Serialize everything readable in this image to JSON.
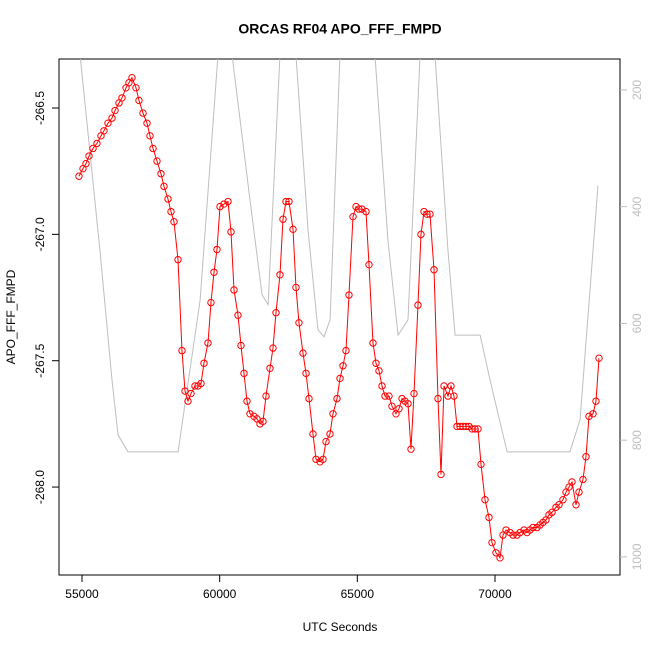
{
  "chart_data": {
    "type": "line",
    "title": "ORCAS RF04 APO_FFF_FMPD",
    "x_label": "UTC Seconds",
    "y_label": "APO_FFF_FMPD",
    "xlim": [
      54165,
      74540
    ],
    "xticks": [
      55000,
      60000,
      65000,
      70000
    ],
    "ylim": [
      -268.348,
      -266.306
    ],
    "yticks": [
      {
        "value": -268,
        "label": "-268.0"
      },
      -267.5,
      {
        "value": -267,
        "label": "-267.0"
      },
      -266.5
    ],
    "y2lim": [
      1031,
      147
    ],
    "y2ticks": [
      200,
      400,
      600,
      800,
      1000
    ],
    "y2_color": "#bebebe",
    "series": [
      {
        "color": "#ff0000",
        "marker": "circle",
        "x": [
          54890,
          55036,
          55145,
          55254,
          55400,
          55545,
          55690,
          55799,
          55944,
          56090,
          56199,
          56344,
          56453,
          56598,
          56707,
          56816,
          56961,
          57070,
          57216,
          57361,
          57470,
          57579,
          57724,
          57869,
          57978,
          58124,
          58233,
          58341,
          58487,
          58632,
          58741,
          58850,
          58959,
          59104,
          59213,
          59322,
          59431,
          59576,
          59685,
          59794,
          59903,
          60012,
          60157,
          60303,
          60412,
          60521,
          60666,
          60775,
          60884,
          60993,
          61102,
          61247,
          61356,
          61465,
          61574,
          61683,
          61828,
          61937,
          62046,
          62191,
          62300,
          62409,
          62518,
          62664,
          62772,
          62881,
          63027,
          63136,
          63245,
          63390,
          63499,
          63644,
          63753,
          63862,
          64007,
          64116,
          64262,
          64371,
          64480,
          64588,
          64697,
          64843,
          64952,
          65060,
          65170,
          65315,
          65424,
          65569,
          65678,
          65787,
          65896,
          66005,
          66150,
          66259,
          66404,
          66513,
          66622,
          66731,
          66840,
          66949,
          67058,
          67203,
          67312,
          67421,
          67530,
          67639,
          67785,
          67930,
          68039,
          68148,
          68293,
          68402,
          68511,
          68620,
          68729,
          68838,
          68947,
          69056,
          69165,
          69274,
          69383,
          69492,
          69637,
          69782,
          69891,
          70036,
          70182,
          70291,
          70400,
          70545,
          70654,
          70799,
          70908,
          71053,
          71162,
          71271,
          71380,
          71526,
          71635,
          71744,
          71852,
          71961,
          72070,
          72216,
          72325,
          72470,
          72579,
          72688,
          72797,
          72942,
          73051,
          73196,
          73305,
          73414,
          73560,
          73668,
          73777
        ],
        "values": [
          -266.77,
          -266.74,
          -266.72,
          -266.69,
          -266.66,
          -266.64,
          -266.61,
          -266.59,
          -266.56,
          -266.54,
          -266.51,
          -266.48,
          -266.46,
          -266.42,
          -266.4,
          -266.38,
          -266.42,
          -266.47,
          -266.52,
          -266.56,
          -266.61,
          -266.66,
          -266.71,
          -266.76,
          -266.81,
          -266.86,
          -266.91,
          -266.95,
          -267.1,
          -267.46,
          -267.62,
          -267.66,
          -267.63,
          -267.6,
          -267.6,
          -267.59,
          -267.51,
          -267.43,
          -267.27,
          -267.15,
          -267.06,
          -266.89,
          -266.88,
          -266.87,
          -266.99,
          -267.22,
          -267.32,
          -267.44,
          -267.55,
          -267.66,
          -267.71,
          -267.72,
          -267.73,
          -267.75,
          -267.74,
          -267.64,
          -267.53,
          -267.45,
          -267.31,
          -267.16,
          -266.94,
          -266.87,
          -266.87,
          -266.98,
          -267.21,
          -267.35,
          -267.47,
          -267.55,
          -267.65,
          -267.79,
          -267.89,
          -267.9,
          -267.89,
          -267.82,
          -267.79,
          -267.71,
          -267.65,
          -267.57,
          -267.52,
          -267.46,
          -267.24,
          -266.93,
          -266.89,
          -266.9,
          -266.9,
          -266.91,
          -267.12,
          -267.43,
          -267.51,
          -267.54,
          -267.6,
          -267.64,
          -267.64,
          -267.68,
          -267.71,
          -267.69,
          -267.65,
          -267.66,
          -267.67,
          -267.85,
          -267.63,
          -267.28,
          -267.0,
          -266.91,
          -266.92,
          -266.92,
          -267.14,
          -267.65,
          -267.95,
          -267.6,
          -267.64,
          -267.6,
          -267.64,
          -267.76,
          -267.76,
          -267.76,
          -267.76,
          -267.76,
          -267.77,
          -267.77,
          -267.77,
          -267.91,
          -268.05,
          -268.12,
          -268.22,
          -268.26,
          -268.28,
          -268.19,
          -268.17,
          -268.18,
          -268.19,
          -268.19,
          -268.18,
          -268.17,
          -268.18,
          -268.17,
          -268.16,
          -268.16,
          -268.15,
          -268.14,
          -268.13,
          -268.11,
          -268.1,
          -268.08,
          -268.07,
          -268.05,
          -268.02,
          -268.0,
          -267.98,
          -268.07,
          -268.02,
          -267.97,
          -267.88,
          -267.72,
          -267.71,
          -267.66,
          -267.49
        ]
      },
      {
        "color": "#bebebe",
        "axis": "y2",
        "x": [
          54930,
          55650,
          56090,
          56310,
          56670,
          58490,
          59290,
          59940,
          60450,
          61100,
          61540,
          61760,
          62190,
          62770,
          63210,
          63570,
          63790,
          64010,
          64370,
          65640,
          66110,
          66480,
          66840,
          67280,
          67820,
          68290,
          68550,
          69460,
          69820,
          70440,
          72720,
          73090,
          73740
        ],
        "values": [
          140,
          474,
          697,
          791,
          820,
          820,
          560,
          140,
          140,
          388,
          551,
          568,
          140,
          140,
          440,
          611,
          623,
          594,
          140,
          140,
          457,
          620,
          594,
          140,
          140,
          474,
          620,
          620,
          697,
          820,
          820,
          765,
          364
        ]
      }
    ]
  }
}
